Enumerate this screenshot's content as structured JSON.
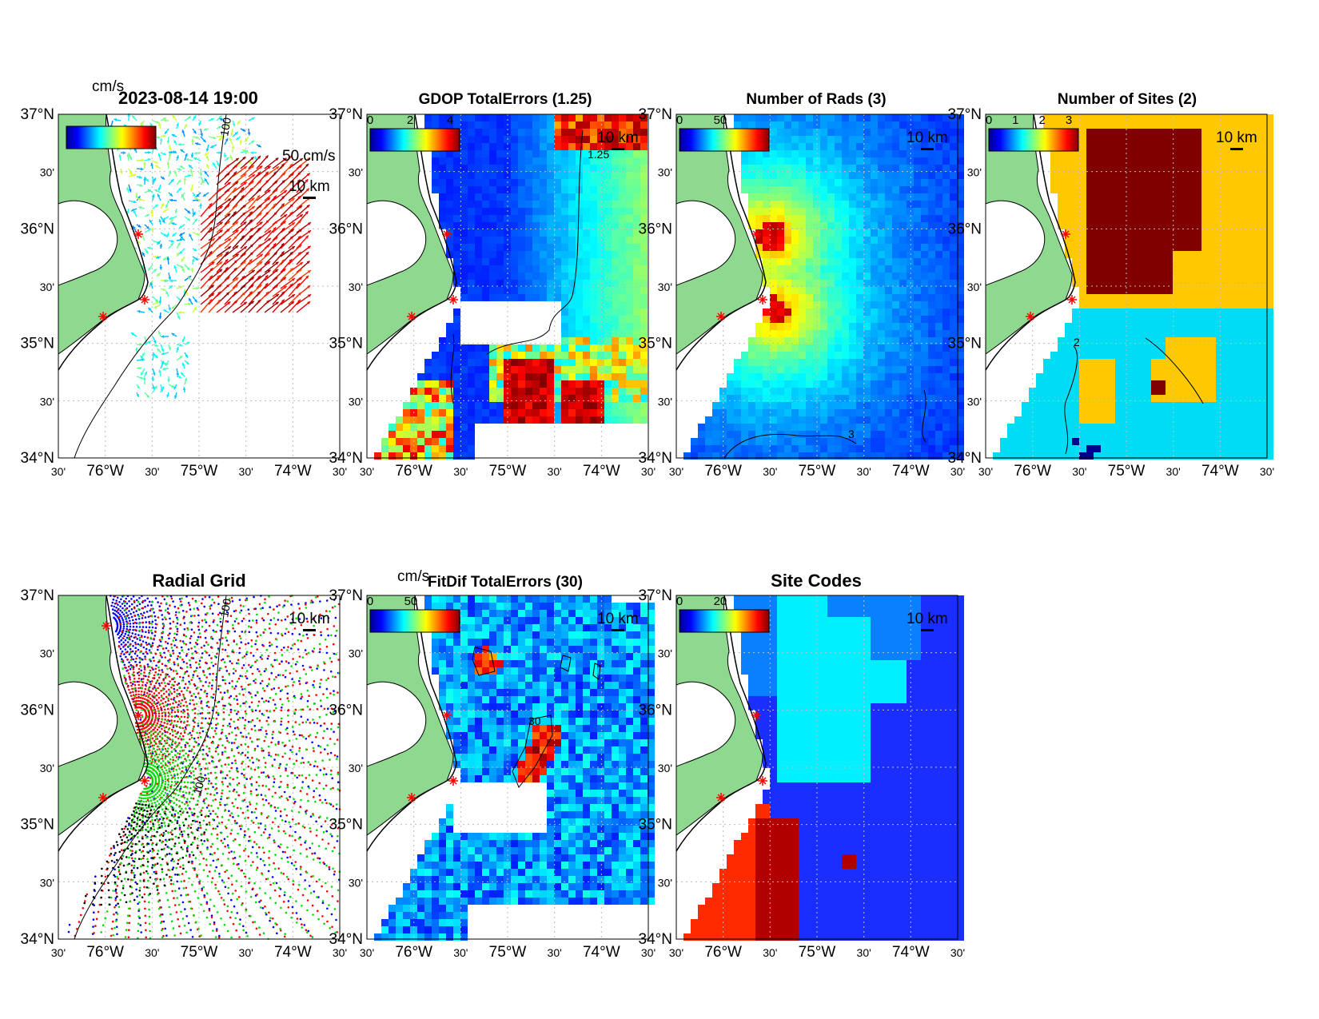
{
  "figure": {
    "timestamp": "2023-08-14 19:00",
    "colors": {
      "land": "#8fd88f",
      "coast": "#000000",
      "grid": "#bdbdbd",
      "site_marker": "#ff0000",
      "ocean_none": "#ffffff"
    },
    "ticks": {
      "lat_labels": [
        "37°N",
        "30'",
        "36°N",
        "30'",
        "35°N",
        "30'",
        "34°N"
      ],
      "lon_labels": [
        "30'",
        "76°W",
        "30'",
        "75°W",
        "30'",
        "74°W",
        "30'"
      ]
    },
    "scale_label": "10 km",
    "panels": [
      {
        "id": "currents",
        "title": "",
        "overlay_title": "2023-08-14 19:00",
        "colorbar_units": "cm/s",
        "colorbar_ticks": [],
        "legend_label": "50 cm/s",
        "contour_label": "100",
        "icons": [
          "arrow-icon",
          "star-icon"
        ]
      },
      {
        "id": "gdop",
        "title": "GDOP TotalErrors (1.25)",
        "colorbar_units": "",
        "colorbar_ticks": [
          "0",
          "2",
          "4"
        ],
        "contour_label": "1.25",
        "colormap": "jet"
      },
      {
        "id": "nrads",
        "title": "Number of Rads (3)",
        "colorbar_units": "",
        "colorbar_ticks": [
          "0",
          "50"
        ],
        "contour_label": "3",
        "colormap": "jet"
      },
      {
        "id": "nsites",
        "title": "Number of Sites (2)",
        "colorbar_units": "",
        "colorbar_ticks": [
          "0",
          "1",
          "2",
          "3"
        ],
        "contour_label": "2",
        "site_colors": {
          "one": "#00dcf5",
          "two": "#ffc800",
          "three": "#800000",
          "zero": "#000090"
        }
      },
      {
        "id": "radial",
        "title": "Radial Grid",
        "contour_label": "100",
        "site_grid_colors": [
          "#0000ff",
          "#ff0000",
          "#00dd00",
          "#000000"
        ]
      },
      {
        "id": "fitdif",
        "title": "FitDif TotalErrors (30)",
        "colorbar_units": "cm/s",
        "colorbar_ticks": [
          "0",
          "50"
        ],
        "contour_label": "30",
        "colormap": "jet"
      },
      {
        "id": "sitecodes",
        "title": "Site Codes",
        "colorbar_units": "",
        "colorbar_ticks": [
          "0",
          "20"
        ],
        "region_colors": [
          "#1a2fff",
          "#0a80ff",
          "#00f0ff",
          "#ff2a00",
          "#b00000"
        ]
      }
    ]
  }
}
